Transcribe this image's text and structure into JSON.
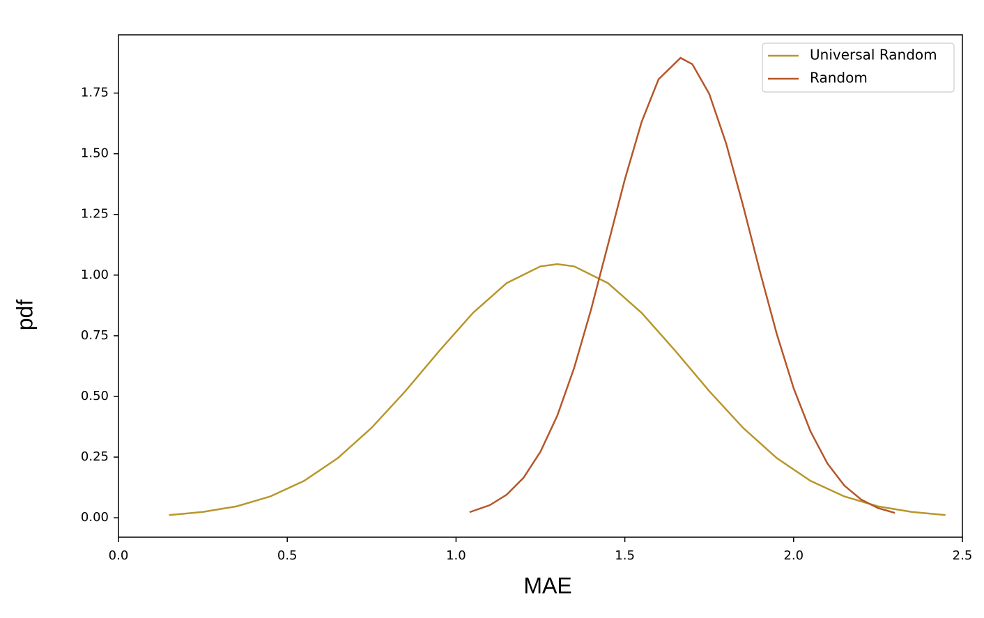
{
  "chart_data": {
    "type": "line",
    "xlabel": "MAE",
    "ylabel": "pdf",
    "xlim": [
      0,
      2.5
    ],
    "xticks": [
      {
        "value": 0,
        "label": "0.0"
      },
      0.5,
      {
        "value": 1,
        "label": "1.0"
      },
      1.5,
      {
        "value": 2,
        "label": "2.0"
      },
      2.5
    ],
    "ylim": [
      -0.08,
      1.99
    ],
    "yticks": [
      {
        "value": 0,
        "label": "0.00"
      },
      0.25,
      {
        "value": 0.5,
        "label": "0.50"
      },
      0.75,
      {
        "value": 1,
        "label": "1.00"
      },
      1.25,
      {
        "value": 1.5,
        "label": "1.50"
      },
      1.75
    ],
    "grid": false,
    "legend": "upper right",
    "series": [
      {
        "name": "Universal Random",
        "color": "#b8962b",
        "x": [
          0.15,
          0.25,
          0.35,
          0.45,
          0.55,
          0.65,
          0.75,
          0.85,
          0.95,
          1.05,
          1.15,
          1.25,
          1.3,
          1.35,
          1.45,
          1.55,
          1.65,
          1.75,
          1.85,
          1.95,
          2.05,
          2.15,
          2.25,
          2.35,
          2.45
        ],
        "values": [
          0.011,
          0.024,
          0.047,
          0.088,
          0.152,
          0.246,
          0.371,
          0.522,
          0.687,
          0.844,
          0.967,
          1.036,
          1.045,
          1.036,
          0.967,
          0.844,
          0.687,
          0.522,
          0.371,
          0.246,
          0.152,
          0.088,
          0.047,
          0.024,
          0.011
        ]
      },
      {
        "name": "Random",
        "color": "#b5562a",
        "x": [
          1.04,
          1.1,
          1.15,
          1.2,
          1.25,
          1.3,
          1.35,
          1.4,
          1.45,
          1.5,
          1.55,
          1.6,
          1.665,
          1.7,
          1.75,
          1.8,
          1.85,
          1.9,
          1.95,
          2.0,
          2.05,
          2.1,
          2.15,
          2.2,
          2.25,
          2.3
        ],
        "values": [
          0.023,
          0.052,
          0.095,
          0.165,
          0.272,
          0.421,
          0.618,
          0.858,
          1.125,
          1.394,
          1.632,
          1.807,
          1.895,
          1.869,
          1.747,
          1.543,
          1.288,
          1.016,
          0.758,
          0.534,
          0.356,
          0.224,
          0.133,
          0.075,
          0.04,
          0.02
        ]
      }
    ]
  }
}
